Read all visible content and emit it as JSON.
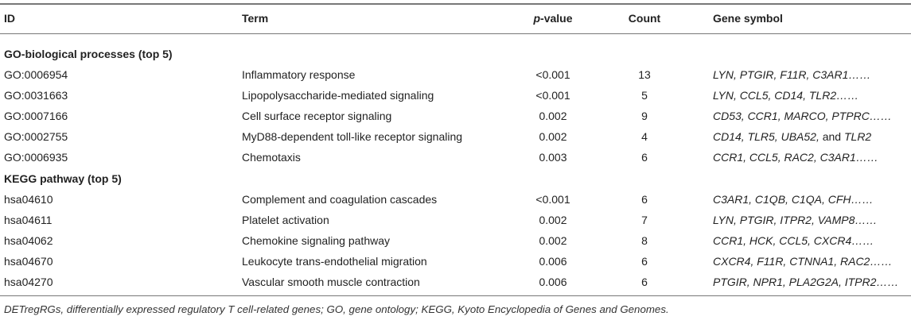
{
  "header": {
    "id": "ID",
    "term": "Term",
    "p_italic": "p",
    "p_rest": "-value",
    "count": "Count",
    "genes": "Gene symbol"
  },
  "sections": [
    {
      "title": "GO-biological processes (top 5)",
      "rows": [
        {
          "id": "GO:0006954",
          "term": "Inflammatory response",
          "p": "<0.001",
          "count": "13",
          "genes": "LYN, PTGIR, F11R, C3AR1……"
        },
        {
          "id": "GO:0031663",
          "term": "Lipopolysaccharide-mediated signaling",
          "p": "<0.001",
          "count": "5",
          "genes": "LYN, CCL5, CD14, TLR2……"
        },
        {
          "id": "GO:0007166",
          "term": "Cell surface receptor signaling",
          "p": "0.002",
          "count": "9",
          "genes": "CD53, CCR1, MARCO, PTPRC……"
        },
        {
          "id": "GO:0002755",
          "term": "MyD88-dependent toll-like receptor signaling",
          "p": "0.002",
          "count": "4",
          "genes_a": "CD14, TLR5, UBA52,",
          "genes_and": " and ",
          "genes_b": "TLR2"
        },
        {
          "id": "GO:0006935",
          "term": "Chemotaxis",
          "p": "0.003",
          "count": "6",
          "genes": "CCR1, CCL5, RAC2, C3AR1……"
        }
      ]
    },
    {
      "title": "KEGG pathway (top 5)",
      "rows": [
        {
          "id": "hsa04610",
          "term": "Complement and coagulation cascades",
          "p": "<0.001",
          "count": "6",
          "genes": "C3AR1, C1QB, C1QA, CFH……"
        },
        {
          "id": "hsa04611",
          "term": "Platelet activation",
          "p": "0.002",
          "count": "7",
          "genes": "LYN, PTGIR, ITPR2, VAMP8……"
        },
        {
          "id": "hsa04062",
          "term": "Chemokine signaling pathway",
          "p": "0.002",
          "count": "8",
          "genes": "CCR1, HCK, CCL5, CXCR4……"
        },
        {
          "id": "hsa04670",
          "term": "Leukocyte trans-endothelial migration",
          "p": "0.006",
          "count": "6",
          "genes": "CXCR4, F11R, CTNNA1, RAC2……"
        },
        {
          "id": "hsa04270",
          "term": "Vascular smooth muscle contraction",
          "p": "0.006",
          "count": "6",
          "genes": "PTGIR, NPR1, PLA2G2A, ITPR2……"
        }
      ]
    }
  ],
  "footnote": "DETregRGs, differentially expressed regulatory T cell-related genes; GO, gene ontology; KEGG, Kyoto Encyclopedia of Genes and Genomes."
}
